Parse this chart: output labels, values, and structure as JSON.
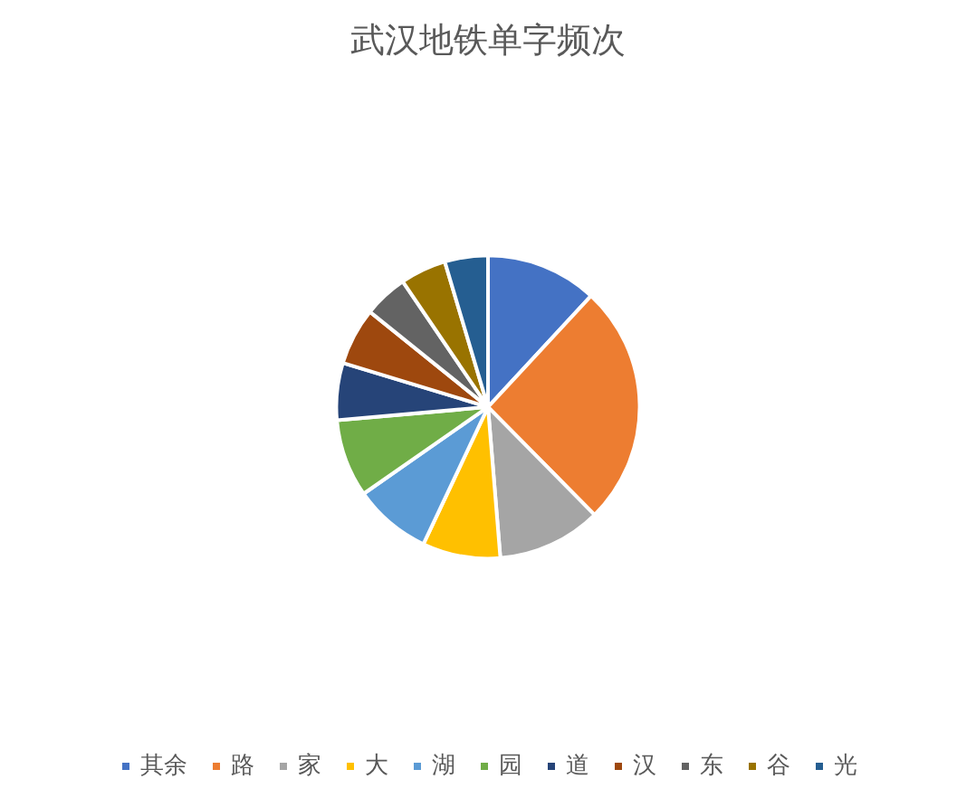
{
  "chart_data": {
    "type": "pie",
    "title": "武汉地铁单字频次",
    "categories": [
      "其余",
      "路",
      "家",
      "大",
      "湖",
      "园",
      "道",
      "汉",
      "东",
      "谷",
      "光"
    ],
    "values": [
      11.9,
      25.7,
      11.1,
      8.3,
      8.3,
      8.3,
      6.1,
      6.1,
      4.7,
      4.9,
      4.6
    ],
    "colors": [
      "#4472c4",
      "#ed7d31",
      "#a5a5a5",
      "#ffc000",
      "#5b9bd5",
      "#70ad47",
      "#264478",
      "#9e480e",
      "#636363",
      "#997300",
      "#255e91"
    ],
    "legend": "bottom"
  }
}
